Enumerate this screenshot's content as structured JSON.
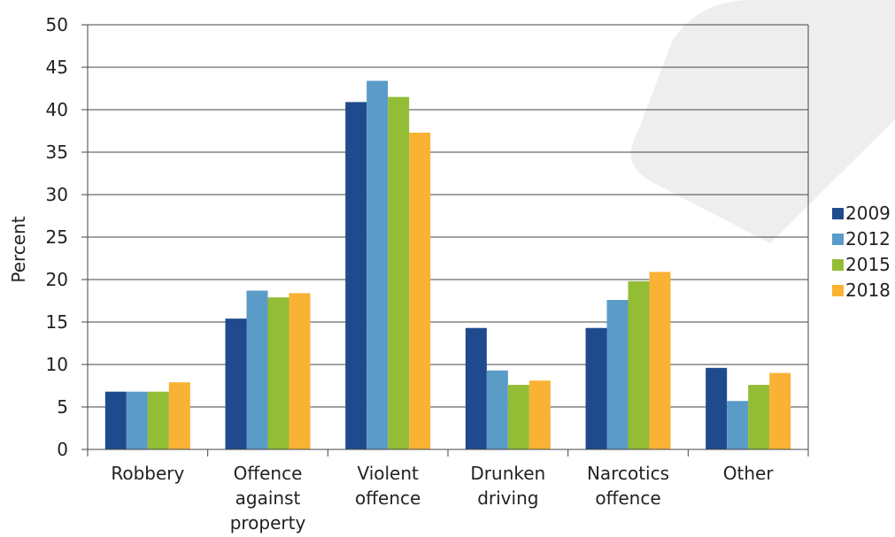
{
  "chart_data": {
    "type": "bar",
    "title": "",
    "xlabel": "",
    "ylabel": "Percent",
    "ylim": [
      0,
      50
    ],
    "yticks": [
      0,
      5,
      10,
      15,
      20,
      25,
      30,
      35,
      40,
      45,
      50
    ],
    "grid": true,
    "legend_position": "right",
    "categories": [
      [
        "Robbery"
      ],
      [
        "Offence",
        "against",
        "property"
      ],
      [
        "Violent",
        "offence"
      ],
      [
        "Drunken",
        "driving"
      ],
      [
        "Narcotics",
        "offence"
      ],
      [
        "Other"
      ]
    ],
    "series": [
      {
        "name": "2009",
        "color": "#1f4b8e",
        "values": [
          6.8,
          15.4,
          40.9,
          14.3,
          14.3,
          9.6
        ]
      },
      {
        "name": "2012",
        "color": "#5b9bc8",
        "values": [
          6.8,
          18.7,
          43.4,
          9.3,
          17.6,
          5.7
        ]
      },
      {
        "name": "2015",
        "color": "#93bd35",
        "values": [
          6.8,
          17.9,
          41.5,
          7.6,
          19.8,
          7.6
        ]
      },
      {
        "name": "2018",
        "color": "#f9b233",
        "values": [
          7.9,
          18.4,
          37.3,
          8.1,
          20.9,
          9.0
        ]
      }
    ]
  }
}
